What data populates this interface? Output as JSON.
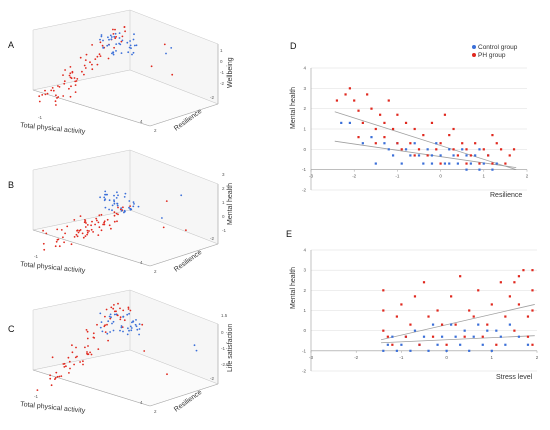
{
  "colors": {
    "control": "#3b6fd8",
    "ph": "#e0281e",
    "grid": "#dcdcdc",
    "axis": "#9a9a9a",
    "trend": "#a0a0a0"
  },
  "chart_data": [
    {
      "panel": "A",
      "type": "scatter3d",
      "xlabel": "Total physical activity",
      "ylabel": "Resilience",
      "zlabel": "Wellbeing",
      "x_ticks": [
        "-1",
        "4"
      ],
      "y_ticks": [
        "2",
        "-2"
      ],
      "z_ticks": [
        "1",
        "0",
        "-1",
        "-2"
      ]
    },
    {
      "panel": "B",
      "type": "scatter3d",
      "xlabel": "Total physical activity",
      "ylabel": "Resilience",
      "zlabel": "Mental health",
      "x_ticks": [
        "-1",
        "4"
      ],
      "y_ticks": [
        "2",
        "-2"
      ],
      "z_ticks": [
        "3",
        "2",
        "1",
        "0",
        "-1"
      ]
    },
    {
      "panel": "C",
      "type": "scatter3d",
      "xlabel": "Total physical activity",
      "ylabel": "Resilience",
      "zlabel": "Life satisfaction",
      "x_ticks": [
        "-1",
        "4"
      ],
      "y_ticks": [
        "2",
        "-2"
      ],
      "z_ticks": [
        "1.5",
        "0",
        "-1",
        "-2.5"
      ]
    },
    {
      "panel": "D",
      "type": "scatter",
      "xlabel": "Resilience",
      "ylabel": "Mental health",
      "xlim": [
        -3,
        2
      ],
      "ylim": [
        -2,
        4
      ],
      "x_ticks": [
        -3,
        -2,
        -1,
        0,
        1,
        2
      ],
      "y_ticks": [
        -2,
        -1,
        0,
        1,
        2,
        3,
        4
      ],
      "legend": [
        "Control group",
        "PH group"
      ],
      "series": [
        {
          "name": "Control group",
          "color": "#3b6fd8",
          "points": [
            [
              -2.3,
              1.3
            ],
            [
              -2.1,
              1.3
            ],
            [
              -1.8,
              0.3
            ],
            [
              -1.6,
              0.6
            ],
            [
              -1.5,
              -0.7
            ],
            [
              -1.3,
              0.3
            ],
            [
              -1.2,
              0.0
            ],
            [
              -1.1,
              -0.3
            ],
            [
              -1.0,
              0.3
            ],
            [
              -0.9,
              -0.7
            ],
            [
              -0.8,
              0.0
            ],
            [
              -0.7,
              -0.3
            ],
            [
              -0.6,
              0.3
            ],
            [
              -0.5,
              -0.3
            ],
            [
              -0.4,
              -0.7
            ],
            [
              -0.3,
              0.0
            ],
            [
              -0.2,
              -0.3
            ],
            [
              -0.1,
              0.3
            ],
            [
              0.0,
              -0.3
            ],
            [
              0.1,
              -0.7
            ],
            [
              0.2,
              0.0
            ],
            [
              0.3,
              -0.3
            ],
            [
              0.4,
              -0.7
            ],
            [
              0.5,
              0.0
            ],
            [
              0.6,
              -0.3
            ],
            [
              0.7,
              -0.7
            ],
            [
              0.8,
              -0.3
            ],
            [
              0.9,
              0.0
            ],
            [
              1.0,
              -0.7
            ],
            [
              1.1,
              -0.3
            ],
            [
              1.2,
              -1.0
            ],
            [
              1.3,
              -0.7
            ],
            [
              0.6,
              -1.0
            ],
            [
              0.2,
              -0.7
            ],
            [
              -0.2,
              -0.7
            ],
            [
              0.9,
              -1.0
            ]
          ]
        },
        {
          "name": "PH group",
          "color": "#e0281e",
          "points": [
            [
              -2.4,
              2.4
            ],
            [
              -2.2,
              2.7
            ],
            [
              -2.1,
              3.0
            ],
            [
              -2.0,
              2.4
            ],
            [
              -1.9,
              1.9
            ],
            [
              -1.8,
              1.3
            ],
            [
              -1.7,
              2.7
            ],
            [
              -1.6,
              2.0
            ],
            [
              -1.5,
              1.0
            ],
            [
              -1.4,
              1.7
            ],
            [
              -1.3,
              1.3
            ],
            [
              -1.2,
              2.4
            ],
            [
              -1.1,
              1.0
            ],
            [
              -1.0,
              0.3
            ],
            [
              -1.0,
              1.7
            ],
            [
              -0.9,
              0.0
            ],
            [
              -0.8,
              1.3
            ],
            [
              -0.7,
              0.3
            ],
            [
              -0.6,
              1.0
            ],
            [
              -0.5,
              0.0
            ],
            [
              -0.4,
              0.7
            ],
            [
              -0.3,
              -0.3
            ],
            [
              -0.2,
              1.3
            ],
            [
              -0.1,
              0.0
            ],
            [
              0.0,
              0.3
            ],
            [
              0.0,
              -0.7
            ],
            [
              0.1,
              1.7
            ],
            [
              0.2,
              0.7
            ],
            [
              0.3,
              0.0
            ],
            [
              0.4,
              -0.3
            ],
            [
              0.5,
              0.3
            ],
            [
              0.6,
              0.0
            ],
            [
              0.7,
              -0.3
            ],
            [
              0.8,
              0.3
            ],
            [
              0.9,
              -0.7
            ],
            [
              1.0,
              0.0
            ],
            [
              1.1,
              -0.3
            ],
            [
              1.2,
              -0.7
            ],
            [
              1.3,
              0.3
            ],
            [
              1.4,
              0.0
            ],
            [
              1.5,
              -0.7
            ],
            [
              1.6,
              -0.3
            ],
            [
              1.7,
              0.0
            ],
            [
              -1.9,
              0.6
            ],
            [
              -1.5,
              0.3
            ],
            [
              0.3,
              1.0
            ],
            [
              -0.6,
              -0.3
            ],
            [
              0.6,
              -0.7
            ],
            [
              -1.3,
              0.6
            ],
            [
              1.2,
              0.7
            ]
          ]
        }
      ],
      "trendlines": [
        {
          "series": "PH group",
          "x": [
            -2.45,
            1.75
          ],
          "y": [
            1.85,
            -1.0
          ]
        },
        {
          "series": "Control group",
          "x": [
            -2.45,
            1.75
          ],
          "y": [
            0.4,
            -0.9
          ]
        }
      ]
    },
    {
      "panel": "E",
      "type": "scatter",
      "xlabel": "Stress level",
      "ylabel": "Mental health",
      "xlim": [
        -3,
        2
      ],
      "ylim": [
        -2,
        4
      ],
      "x_ticks": [
        -3,
        -2,
        -1,
        0,
        1,
        2
      ],
      "y_ticks": [
        -2,
        -1,
        0,
        1,
        2,
        3,
        4
      ],
      "series": [
        {
          "name": "Control group",
          "color": "#3b6fd8",
          "points": [
            [
              -1.4,
              -1.0
            ],
            [
              -1.3,
              -0.7
            ],
            [
              -1.2,
              -0.3
            ],
            [
              -1.1,
              -1.0
            ],
            [
              -1.0,
              -0.7
            ],
            [
              -0.9,
              -0.3
            ],
            [
              -0.8,
              -1.0
            ],
            [
              -0.7,
              0.0
            ],
            [
              -0.6,
              -0.7
            ],
            [
              -0.5,
              -0.3
            ],
            [
              -0.4,
              -1.0
            ],
            [
              -0.3,
              0.3
            ],
            [
              -0.2,
              -0.7
            ],
            [
              -0.1,
              -0.3
            ],
            [
              0.0,
              -1.0
            ],
            [
              0.1,
              0.3
            ],
            [
              0.2,
              -0.3
            ],
            [
              0.3,
              -0.7
            ],
            [
              0.4,
              0.0
            ],
            [
              0.5,
              -1.0
            ],
            [
              0.6,
              -0.3
            ],
            [
              0.7,
              0.3
            ],
            [
              0.8,
              -0.7
            ],
            [
              0.9,
              0.0
            ],
            [
              1.0,
              -1.0
            ],
            [
              1.1,
              0.0
            ],
            [
              1.2,
              -0.3
            ],
            [
              1.3,
              -0.7
            ],
            [
              1.4,
              0.3
            ],
            [
              1.6,
              -0.3
            ],
            [
              1.8,
              -0.7
            ]
          ]
        },
        {
          "name": "PH group",
          "color": "#e0281e",
          "points": [
            [
              -1.4,
              2.0
            ],
            [
              -1.4,
              1.0
            ],
            [
              -1.4,
              0.0
            ],
            [
              -1.3,
              -0.3
            ],
            [
              -1.2,
              -0.7
            ],
            [
              -1.1,
              0.7
            ],
            [
              -1.0,
              1.3
            ],
            [
              -0.9,
              -0.3
            ],
            [
              -0.8,
              0.3
            ],
            [
              -0.7,
              1.7
            ],
            [
              -0.6,
              -0.7
            ],
            [
              -0.5,
              2.4
            ],
            [
              -0.4,
              0.7
            ],
            [
              -0.3,
              -0.3
            ],
            [
              -0.2,
              1.0
            ],
            [
              -0.1,
              0.3
            ],
            [
              0.0,
              -0.7
            ],
            [
              0.1,
              1.7
            ],
            [
              0.2,
              0.3
            ],
            [
              0.3,
              2.7
            ],
            [
              0.4,
              -0.3
            ],
            [
              0.5,
              1.0
            ],
            [
              0.6,
              0.7
            ],
            [
              0.7,
              2.0
            ],
            [
              0.8,
              -0.3
            ],
            [
              0.9,
              0.3
            ],
            [
              1.0,
              1.3
            ],
            [
              1.1,
              -0.7
            ],
            [
              1.2,
              2.4
            ],
            [
              1.3,
              0.7
            ],
            [
              1.4,
              1.7
            ],
            [
              1.5,
              0.0
            ],
            [
              1.6,
              2.7
            ],
            [
              1.6,
              1.3
            ],
            [
              1.7,
              3.0
            ],
            [
              1.8,
              -0.3
            ],
            [
              1.8,
              0.7
            ],
            [
              1.9,
              2.0
            ],
            [
              1.9,
              3.0
            ],
            [
              1.9,
              1.0
            ],
            [
              1.9,
              -0.7
            ],
            [
              1.5,
              2.4
            ]
          ]
        }
      ],
      "trendlines": [
        {
          "series": "PH group",
          "x": [
            -1.45,
            1.95
          ],
          "y": [
            -0.45,
            1.3
          ]
        },
        {
          "series": "Control group",
          "x": [
            -1.45,
            1.95
          ],
          "y": [
            -0.6,
            -0.25
          ]
        }
      ]
    }
  ]
}
